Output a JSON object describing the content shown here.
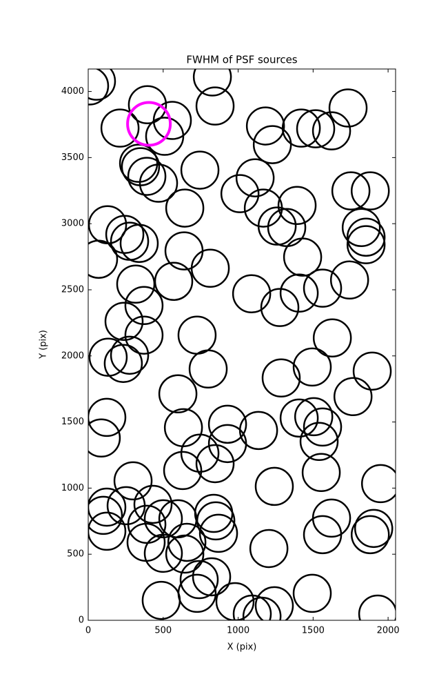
{
  "chart_data": {
    "type": "scatter",
    "title": "FWHM of PSF sources",
    "x_label": "X (pix)",
    "y_label": "Y (pix)",
    "xlim": [
      0,
      2050
    ],
    "ylim": [
      0,
      4170
    ],
    "xticks": [
      0,
      500,
      1000,
      1500,
      2000
    ],
    "yticks": [
      0,
      500,
      1000,
      1500,
      2000,
      2500,
      3000,
      3500,
      4000
    ],
    "series": [
      {
        "color": "#000000",
        "size": 27,
        "x": [
          55,
          9,
          828,
          395,
          212,
          561,
          510,
          846,
          1182,
          1421,
          1517,
          1623,
          1733,
          1228,
          336,
          349,
          391,
          469,
          745,
          1012,
          1113,
          644,
          1168,
          1260,
          1324,
          1393,
          1752,
          1881,
          129,
          244,
          276,
          340,
          69,
          639,
          814,
          1430,
          1821,
          1853,
          1853,
          317,
          570,
          372,
          1090,
          1278,
          1407,
          1563,
          1743,
          239,
          372,
          726,
          133,
          234,
          276,
          800,
          1287,
          1494,
          1628,
          1894,
          598,
          1766,
          124,
          87,
          635,
          929,
          1136,
          1407,
          1504,
          1563,
          1540,
          745,
          929,
          846,
          630,
          1554,
          299,
          1241,
          1950,
          124,
          101,
          253,
          432,
          501,
          391,
          598,
          124,
          386,
          501,
          658,
          644,
          837,
          851,
          869,
          1623,
          1563,
          1904,
          1881,
          1205,
          740,
          823,
          726,
          487,
          979,
          1241,
          1094,
          1159,
          1494,
          1931
        ],
        "values": [
          4078,
          4042,
          4110,
          3900,
          3723,
          3781,
          3661,
          3890,
          3739,
          3723,
          3718,
          3702,
          3875,
          3598,
          3457,
          3431,
          3358,
          3306,
          3405,
          3227,
          3347,
          3118,
          3118,
          2982,
          2971,
          3138,
          3248,
          3248,
          2992,
          2919,
          2867,
          2851,
          2731,
          2794,
          2663,
          2747,
          2971,
          2898,
          2841,
          2543,
          2564,
          2381,
          2470,
          2366,
          2475,
          2512,
          2574,
          2261,
          2157,
          2157,
          1990,
          1943,
          2005,
          1901,
          1833,
          1916,
          2136,
          1885,
          1713,
          1692,
          1535,
          1379,
          1457,
          1483,
          1436,
          1530,
          1540,
          1462,
          1353,
          1264,
          1337,
          1185,
          1133,
          1118,
          1055,
          1013,
          1034,
          856,
          794,
          867,
          877,
          768,
          726,
          768,
          674,
          590,
          507,
          590,
          501,
          809,
          752,
          658,
          773,
          648,
          695,
          648,
          543,
          308,
          329,
          204,
          151,
          141,
          110,
          47,
          31,
          204,
          47
        ]
      },
      {
        "color": "#ff00ff",
        "size": 31,
        "x": [
          405
        ],
        "values": [
          3755
        ]
      }
    ]
  }
}
